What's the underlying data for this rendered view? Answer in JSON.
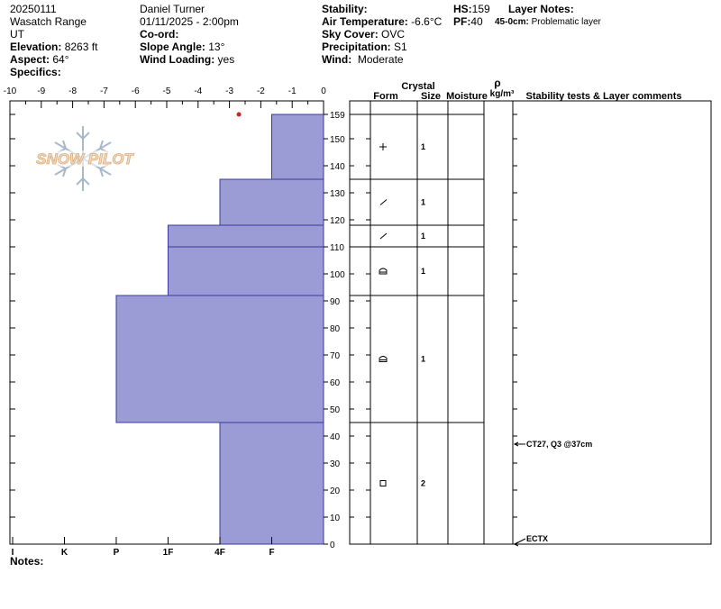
{
  "header": {
    "date": "20250111",
    "range": "Wasatch Range",
    "state": "UT",
    "elevation_label": "Elevation:",
    "elevation": "8263 ft",
    "aspect_label": "Aspect:",
    "aspect": "64°",
    "specifics_label": "Specifics:",
    "observer": "Daniel Turner",
    "datetime": "01/11/2025 - 2:00pm",
    "coord_label": "Co-ord:",
    "slope_label": "Slope Angle:",
    "slope": "13°",
    "wind_loading_label": "Wind Loading:",
    "wind_loading": "yes",
    "stability_label": "Stability:",
    "air_temp_label": "Air Temperature:",
    "air_temp": "-6.6°C",
    "sky_label": "Sky Cover:",
    "sky": "OVC",
    "precip_label": "Precipitation:",
    "precip": "S1",
    "wind_label": "Wind:",
    "wind": "Moderate",
    "hs_label": "HS:",
    "hs": "159",
    "pf_label": "PF:",
    "pf": "40",
    "layer_notes_label": "Layer Notes:",
    "layer_note_range": "45-0cm:",
    "layer_note_text": "Problematic layer"
  },
  "notes_label": "Notes:",
  "logo_text": "SNOW PILOT",
  "columns": {
    "crystal": "Crystal",
    "form": "Form",
    "size": "Size",
    "moisture": "Moisture",
    "rho": "ρ",
    "density_unit": "kg/m³",
    "comments": "Stability tests & Layer comments"
  },
  "colors": {
    "layer_fill": "#9b9bd6",
    "layer_stroke": "#3a3aa0",
    "temp_point": "#cc2222"
  },
  "chart_data": {
    "type": "bar",
    "orientation": "horizontal",
    "temperature_axis": {
      "ticks": [
        "-10",
        "-9",
        "-8",
        "-7",
        "-6",
        "-5",
        "-4",
        "-3",
        "-2",
        "-1",
        "0"
      ],
      "range": [
        -10,
        0
      ]
    },
    "height_axis": {
      "ticks": [
        "159",
        "150",
        "140",
        "130",
        "120",
        "110",
        "100",
        "90",
        "80",
        "70",
        "60",
        "50",
        "40",
        "30",
        "20",
        "10",
        "0"
      ],
      "range": [
        0,
        159
      ]
    },
    "hardness_axis": {
      "labels": [
        "I",
        "K",
        "P",
        "1F",
        "4F",
        "F"
      ],
      "values": [
        6,
        5,
        4,
        3,
        2,
        1
      ]
    },
    "temperature_points": [
      {
        "height": 159,
        "temp": -2.7
      }
    ],
    "layers": [
      {
        "top": 159,
        "bottom": 135,
        "hardness": 1,
        "form": "+",
        "size": "1"
      },
      {
        "top": 135,
        "bottom": 118,
        "hardness": 2,
        "form": "/",
        "size": "1"
      },
      {
        "top": 118,
        "bottom": 110,
        "hardness": 3,
        "form": "/",
        "size": "1"
      },
      {
        "top": 110,
        "bottom": 92,
        "hardness": 3,
        "form": "⩍",
        "size": "1"
      },
      {
        "top": 92,
        "bottom": 45,
        "hardness": 4,
        "form": "⩍",
        "size": "1"
      },
      {
        "top": 45,
        "bottom": 0,
        "hardness": 2,
        "form": "□",
        "size": "2"
      }
    ],
    "tests": [
      {
        "height": 37,
        "label": "CT27, Q3 @37cm"
      },
      {
        "height": 0,
        "label": "ECTX"
      }
    ]
  }
}
